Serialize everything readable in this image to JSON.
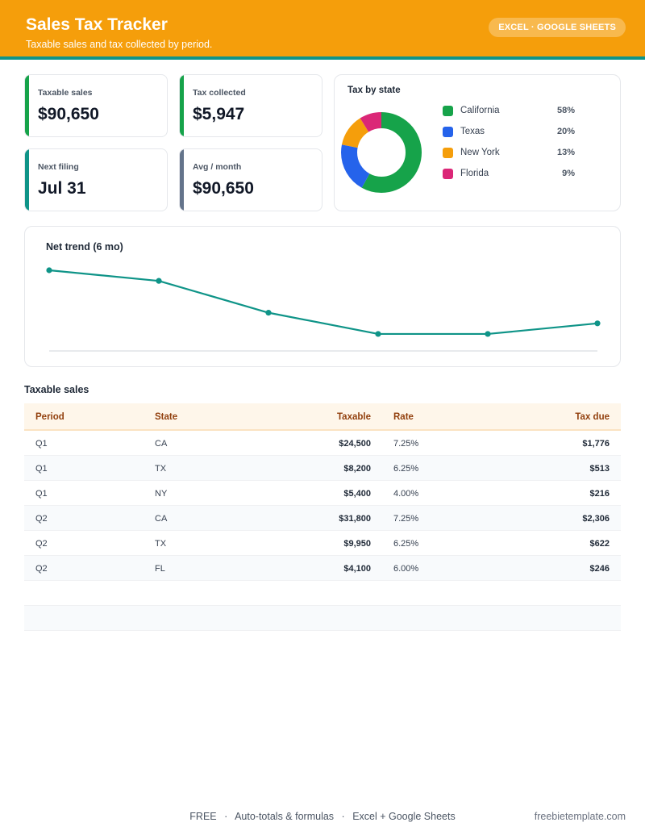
{
  "header": {
    "title": "Sales Tax Tracker",
    "subtitle": "Taxable sales and tax collected by period.",
    "badge": "EXCEL · GOOGLE SHEETS"
  },
  "kpis": [
    {
      "label": "Taxable sales",
      "value": "$90,650",
      "color": "#16a34a"
    },
    {
      "label": "Tax collected",
      "value": "$5,947",
      "color": "#16a34a"
    },
    {
      "label": "Next filing",
      "value": "Jul 31",
      "color": "#0f9488"
    },
    {
      "label": "Avg / month",
      "value": "$90,650",
      "color": "#64748b"
    }
  ],
  "chart_data": [
    {
      "type": "pie",
      "title": "Tax by state",
      "donut": true,
      "legend_position": "right",
      "categories": [
        "California",
        "Texas",
        "New York",
        "Florida"
      ],
      "values": [
        58,
        20,
        13,
        9
      ],
      "labels": [
        "58%",
        "20%",
        "13%",
        "9%"
      ],
      "colors": [
        "#16a34a",
        "#2563eb",
        "#f59e0b",
        "#db2777"
      ]
    },
    {
      "type": "line",
      "title": "Net trend (6 mo)",
      "x": [
        1,
        2,
        3,
        4,
        5,
        6
      ],
      "series": [
        {
          "values": [
            100,
            86,
            44,
            16,
            16,
            30
          ]
        }
      ],
      "ylim": [
        0,
        100
      ],
      "color": "#0f9488",
      "grid": false,
      "markers": true
    }
  ],
  "table": {
    "title": "Taxable sales",
    "columns": [
      "Period",
      "State",
      "Taxable",
      "Rate",
      "Tax due"
    ],
    "rows": [
      [
        "Q1",
        "CA",
        "$24,500",
        "7.25%",
        "$1,776"
      ],
      [
        "Q1",
        "TX",
        "$8,200",
        "6.25%",
        "$513"
      ],
      [
        "Q1",
        "NY",
        "$5,400",
        "4.00%",
        "$216"
      ],
      [
        "Q2",
        "CA",
        "$31,800",
        "7.25%",
        "$2,306"
      ],
      [
        "Q2",
        "TX",
        "$9,950",
        "6.25%",
        "$622"
      ],
      [
        "Q2",
        "FL",
        "$4,100",
        "6.00%",
        "$246"
      ]
    ]
  },
  "footer": {
    "items": [
      "FREE",
      "Auto-totals & formulas",
      "Excel + Google Sheets"
    ],
    "separator": "·",
    "site": "freebietemplate.com"
  }
}
